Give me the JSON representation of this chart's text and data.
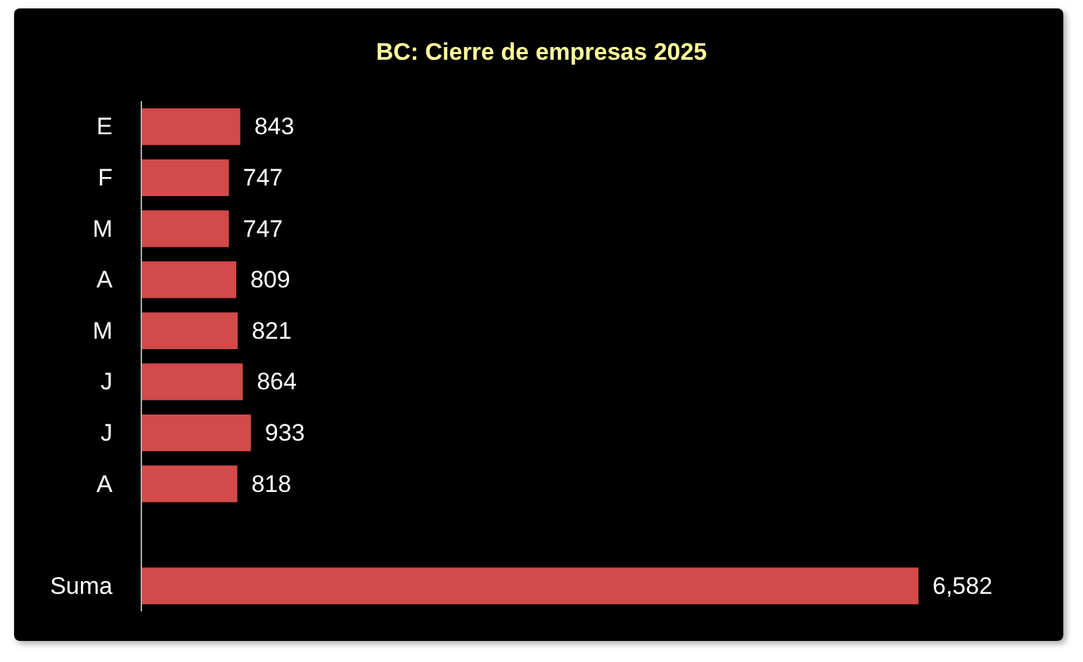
{
  "chart_data": {
    "type": "bar",
    "orientation": "horizontal",
    "title": "BC: Cierre de empresas 2025",
    "categories": [
      "E",
      "F",
      "M",
      "A",
      "M",
      "J",
      "J",
      "A",
      null,
      "Suma"
    ],
    "values": [
      843,
      747,
      747,
      809,
      821,
      864,
      933,
      818,
      null,
      6582
    ],
    "value_labels": [
      "843",
      "747",
      "747",
      "809",
      "821",
      "864",
      "933",
      "818",
      null,
      "6,582"
    ],
    "color": "#d24a4a",
    "tick_labels": "y",
    "grid": false
  }
}
